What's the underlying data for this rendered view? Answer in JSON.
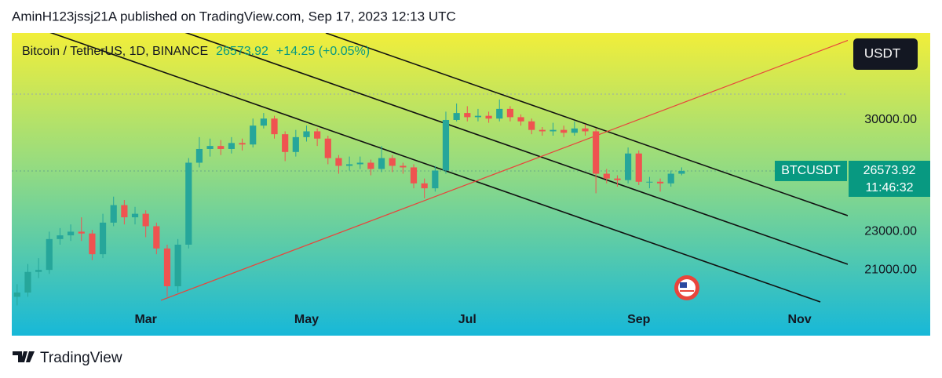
{
  "header": {
    "publisher": "AminH123jssj21A published on TradingView.com, Sep 17, 2023 12:13 UTC"
  },
  "footer": {
    "brand": "TradingView"
  },
  "chart_data": {
    "type": "candlestick",
    "symbol": "Bitcoin / TetherUS, 1D, BINANCE",
    "last_price": 26573.92,
    "change": "+14.25 (+0.05%)",
    "currency": "USDT",
    "ticker": "BTCUSDT",
    "countdown": "11:46:32",
    "log_scale": true,
    "grid": false,
    "up_color": "#26a69a",
    "down_color": "#ef5350",
    "ylim": [
      19280,
      36900
    ],
    "yticks": [
      {
        "value": 21000,
        "label": "21000.00"
      },
      {
        "value": 23000,
        "label": "23000.00"
      },
      {
        "value": 30000,
        "label": "30000.00"
      }
    ],
    "categories": [
      null,
      null,
      null,
      null,
      null,
      null,
      null,
      null,
      null,
      null,
      null,
      null,
      "Mar",
      null,
      null,
      null,
      null,
      null,
      null,
      null,
      null,
      null,
      null,
      null,
      null,
      null,
      null,
      "May",
      null,
      null,
      null,
      null,
      null,
      null,
      null,
      null,
      null,
      null,
      null,
      null,
      null,
      null,
      "Jul",
      null,
      null,
      null,
      null,
      null,
      null,
      null,
      null,
      null,
      null,
      null,
      null,
      null,
      null,
      null,
      "Sep",
      null,
      null,
      null,
      null,
      null,
      null,
      null,
      null,
      null,
      null,
      null,
      null,
      null,
      null,
      "Nov",
      null,
      null,
      null,
      null
    ],
    "open": [
      19700,
      19900,
      20900,
      21000,
      22600,
      22800,
      23000,
      22900,
      21800,
      23500,
      24500,
      23800,
      24000,
      23300,
      22100,
      20200,
      22300,
      27100,
      28000,
      28200,
      28000,
      28400,
      28300,
      29600,
      30100,
      29000,
      27800,
      28800,
      29200,
      28700,
      27400,
      26900,
      27000,
      27100,
      26700,
      27400,
      26900,
      26800,
      25800,
      25500,
      26600,
      30000,
      30500,
      30200,
      30300,
      30100,
      30800,
      30200,
      29900,
      29300,
      29200,
      29300,
      29100,
      29400,
      29200,
      26400,
      26100,
      26000,
      27700,
      25900,
      25900,
      25800,
      26400,
      null,
      null,
      null,
      null,
      null,
      null,
      null,
      null,
      null,
      null,
      null,
      null,
      null,
      null,
      null
    ],
    "high": [
      20300,
      21300,
      21600,
      23000,
      23200,
      23400,
      23800,
      23100,
      24000,
      25000,
      24800,
      24400,
      24200,
      23500,
      22300,
      22600,
      27400,
      28800,
      28700,
      28600,
      28800,
      28700,
      30100,
      30500,
      30300,
      29200,
      29300,
      29600,
      29400,
      28900,
      27600,
      27500,
      27500,
      27300,
      28200,
      27600,
      27100,
      27000,
      26100,
      26900,
      30600,
      31200,
      31000,
      30800,
      30600,
      31500,
      31000,
      30400,
      30100,
      29500,
      29800,
      29600,
      29900,
      29700,
      29400,
      26700,
      26300,
      28100,
      27900,
      26200,
      26100,
      26600,
      26800,
      null,
      null,
      null,
      null,
      null,
      null,
      null,
      null,
      null,
      null,
      null,
      null,
      null,
      null,
      null
    ],
    "low": [
      19300,
      19700,
      20600,
      20800,
      22300,
      22500,
      22500,
      21500,
      21600,
      23300,
      23400,
      23400,
      22700,
      21800,
      19700,
      19900,
      22100,
      26800,
      27500,
      27600,
      27700,
      27900,
      28100,
      29400,
      28700,
      27200,
      27500,
      28500,
      28200,
      27000,
      26400,
      26600,
      26700,
      26300,
      26500,
      26500,
      26400,
      25500,
      24900,
      25300,
      26400,
      29900,
      29900,
      29900,
      29800,
      29900,
      29900,
      29600,
      29000,
      28900,
      28900,
      28800,
      28900,
      28900,
      25200,
      25800,
      25600,
      25800,
      25700,
      25500,
      25300,
      25600,
      26300,
      null,
      null,
      null,
      null,
      null,
      null,
      null,
      null,
      null,
      null,
      null,
      null,
      null,
      null,
      null
    ],
    "close": [
      19900,
      20900,
      21000,
      22600,
      22800,
      23000,
      22900,
      21800,
      23500,
      24500,
      23800,
      24000,
      23300,
      22100,
      20200,
      22300,
      27100,
      28000,
      28200,
      28000,
      28400,
      28300,
      29600,
      30100,
      29000,
      27800,
      28800,
      29200,
      28700,
      27400,
      26900,
      27000,
      27100,
      26700,
      27400,
      26900,
      26800,
      25800,
      25500,
      26600,
      30000,
      30500,
      30200,
      30300,
      30100,
      30800,
      30200,
      29900,
      29300,
      29200,
      29300,
      29100,
      29400,
      29200,
      26400,
      26100,
      26000,
      27700,
      25900,
      25900,
      25800,
      26400,
      26573.92,
      null,
      null,
      null,
      null,
      null,
      null,
      null,
      null,
      null,
      null,
      null,
      null,
      null,
      null,
      null
    ]
  }
}
